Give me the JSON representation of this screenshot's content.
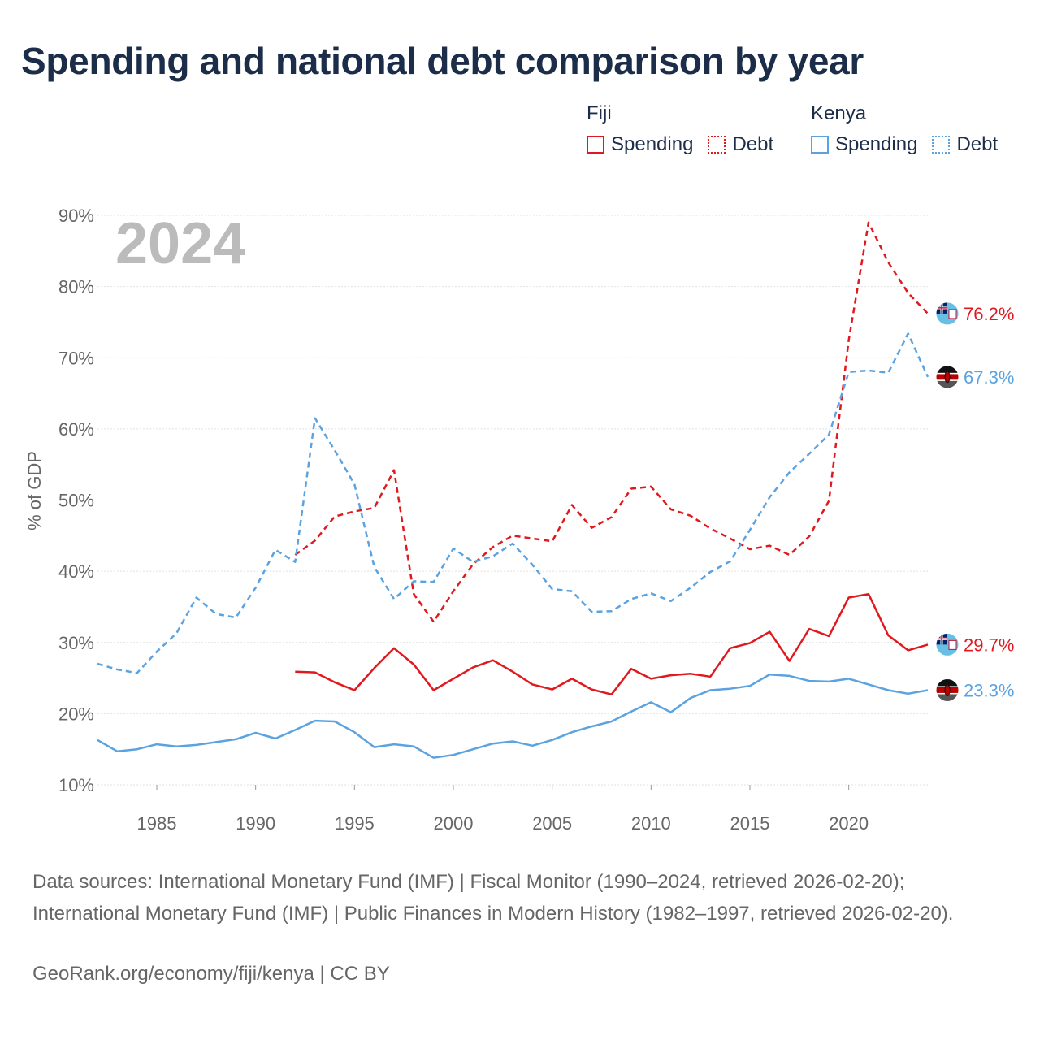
{
  "title": "Spending and national debt comparison by year",
  "legend": {
    "groups": [
      {
        "country": "Fiji",
        "spending_label": "Spending",
        "debt_label": "Debt",
        "color": "#e0191f"
      },
      {
        "country": "Kenya",
        "spending_label": "Spending",
        "debt_label": "Debt",
        "color": "#5ba3e0"
      }
    ]
  },
  "year_label": "2024",
  "footer": {
    "sources": "Data sources: International Monetary Fund (IMF) | Fiscal Monitor (1990–2024, retrieved 2026-02-20); International Monetary Fund (IMF) | Public Finances in Modern History (1982–1997, retrieved 2026-02-20).",
    "credit": "GeoRank.org/economy/fiji/kenya | CC BY"
  },
  "chart_data": {
    "type": "line",
    "title": "Spending and national debt comparison by year",
    "xlabel": "",
    "ylabel": "% of GDP",
    "xlim": [
      1982,
      2024
    ],
    "ylim": [
      10,
      90
    ],
    "x_ticks": [
      1985,
      1990,
      1995,
      2000,
      2005,
      2010,
      2015,
      2020
    ],
    "y_ticks": [
      10,
      20,
      30,
      40,
      50,
      60,
      70,
      80,
      90
    ],
    "grid": true,
    "series": [
      {
        "name": "Fiji Debt",
        "country": "Fiji",
        "measure": "Debt",
        "style": "dashed",
        "color": "#e0191f",
        "end_label": "76.2%",
        "points": [
          [
            1992,
            42.3
          ],
          [
            1993,
            44.3
          ],
          [
            1994,
            47.7
          ],
          [
            1995,
            48.4
          ],
          [
            1996,
            48.9
          ],
          [
            1997,
            54.2
          ],
          [
            1998,
            36.8
          ],
          [
            1999,
            32.9
          ],
          [
            2000,
            37.2
          ],
          [
            2001,
            41.0
          ],
          [
            2002,
            43.4
          ],
          [
            2003,
            45.0
          ],
          [
            2004,
            44.6
          ],
          [
            2005,
            44.2
          ],
          [
            2006,
            49.3
          ],
          [
            2007,
            46.1
          ],
          [
            2008,
            47.6
          ],
          [
            2009,
            51.6
          ],
          [
            2010,
            51.9
          ],
          [
            2011,
            48.7
          ],
          [
            2012,
            47.8
          ],
          [
            2013,
            46.0
          ],
          [
            2014,
            44.6
          ],
          [
            2015,
            43.1
          ],
          [
            2016,
            43.6
          ],
          [
            2017,
            42.3
          ],
          [
            2018,
            44.9
          ],
          [
            2019,
            49.9
          ],
          [
            2020,
            72.5
          ],
          [
            2021,
            89.0
          ],
          [
            2022,
            83.4
          ],
          [
            2023,
            79.1
          ],
          [
            2024,
            76.2
          ]
        ]
      },
      {
        "name": "Kenya Debt",
        "country": "Kenya",
        "measure": "Debt",
        "style": "dashed",
        "color": "#5ba3e0",
        "end_label": "67.3%",
        "points": [
          [
            1982,
            27.0
          ],
          [
            1983,
            26.2
          ],
          [
            1984,
            25.7
          ],
          [
            1985,
            28.7
          ],
          [
            1986,
            31.3
          ],
          [
            1987,
            36.3
          ],
          [
            1988,
            34.0
          ],
          [
            1989,
            33.5
          ],
          [
            1990,
            37.7
          ],
          [
            1991,
            43.0
          ],
          [
            1992,
            41.3
          ],
          [
            1993,
            61.5
          ],
          [
            1994,
            57.0
          ],
          [
            1995,
            52.2
          ],
          [
            1996,
            40.6
          ],
          [
            1997,
            36.1
          ],
          [
            1998,
            38.6
          ],
          [
            1999,
            38.5
          ],
          [
            2000,
            43.2
          ],
          [
            2001,
            41.3
          ],
          [
            2002,
            42.1
          ],
          [
            2003,
            43.9
          ],
          [
            2004,
            40.9
          ],
          [
            2005,
            37.5
          ],
          [
            2006,
            37.2
          ],
          [
            2007,
            34.3
          ],
          [
            2008,
            34.4
          ],
          [
            2009,
            36.1
          ],
          [
            2010,
            36.9
          ],
          [
            2011,
            35.8
          ],
          [
            2012,
            37.7
          ],
          [
            2013,
            39.9
          ],
          [
            2014,
            41.4
          ],
          [
            2015,
            45.8
          ],
          [
            2016,
            50.4
          ],
          [
            2017,
            53.9
          ],
          [
            2018,
            56.5
          ],
          [
            2019,
            59.2
          ],
          [
            2020,
            68.0
          ],
          [
            2021,
            68.2
          ],
          [
            2022,
            67.9
          ],
          [
            2023,
            73.4
          ],
          [
            2024,
            67.3
          ]
        ]
      },
      {
        "name": "Fiji Spending",
        "country": "Fiji",
        "measure": "Spending",
        "style": "solid",
        "color": "#e0191f",
        "end_label": "29.7%",
        "points": [
          [
            1992,
            25.9
          ],
          [
            1993,
            25.8
          ],
          [
            1994,
            24.4
          ],
          [
            1995,
            23.3
          ],
          [
            1996,
            26.4
          ],
          [
            1997,
            29.2
          ],
          [
            1998,
            26.9
          ],
          [
            1999,
            23.3
          ],
          [
            2000,
            24.9
          ],
          [
            2001,
            26.5
          ],
          [
            2002,
            27.5
          ],
          [
            2003,
            25.9
          ],
          [
            2004,
            24.1
          ],
          [
            2005,
            23.4
          ],
          [
            2006,
            24.9
          ],
          [
            2007,
            23.4
          ],
          [
            2008,
            22.7
          ],
          [
            2009,
            26.3
          ],
          [
            2010,
            24.9
          ],
          [
            2011,
            25.4
          ],
          [
            2012,
            25.6
          ],
          [
            2013,
            25.2
          ],
          [
            2014,
            29.2
          ],
          [
            2015,
            29.9
          ],
          [
            2016,
            31.5
          ],
          [
            2017,
            27.4
          ],
          [
            2018,
            31.9
          ],
          [
            2019,
            30.9
          ],
          [
            2020,
            36.3
          ],
          [
            2021,
            36.8
          ],
          [
            2022,
            31.0
          ],
          [
            2023,
            28.9
          ],
          [
            2024,
            29.7
          ]
        ]
      },
      {
        "name": "Kenya Spending",
        "country": "Kenya",
        "measure": "Spending",
        "style": "solid",
        "color": "#5ba3e0",
        "end_label": "23.3%",
        "points": [
          [
            1982,
            16.3
          ],
          [
            1983,
            14.7
          ],
          [
            1984,
            15.0
          ],
          [
            1985,
            15.7
          ],
          [
            1986,
            15.4
          ],
          [
            1987,
            15.6
          ],
          [
            1988,
            16.0
          ],
          [
            1989,
            16.4
          ],
          [
            1990,
            17.3
          ],
          [
            1991,
            16.5
          ],
          [
            1992,
            17.7
          ],
          [
            1993,
            19.0
          ],
          [
            1994,
            18.9
          ],
          [
            1995,
            17.4
          ],
          [
            1996,
            15.3
          ],
          [
            1997,
            15.7
          ],
          [
            1998,
            15.4
          ],
          [
            1999,
            13.8
          ],
          [
            2000,
            14.2
          ],
          [
            2001,
            15.0
          ],
          [
            2002,
            15.8
          ],
          [
            2003,
            16.1
          ],
          [
            2004,
            15.5
          ],
          [
            2005,
            16.3
          ],
          [
            2006,
            17.4
          ],
          [
            2007,
            18.2
          ],
          [
            2008,
            18.9
          ],
          [
            2009,
            20.3
          ],
          [
            2010,
            21.6
          ],
          [
            2011,
            20.2
          ],
          [
            2012,
            22.2
          ],
          [
            2013,
            23.3
          ],
          [
            2014,
            23.5
          ],
          [
            2015,
            23.9
          ],
          [
            2016,
            25.5
          ],
          [
            2017,
            25.3
          ],
          [
            2018,
            24.6
          ],
          [
            2019,
            24.5
          ],
          [
            2020,
            24.9
          ],
          [
            2021,
            24.1
          ],
          [
            2022,
            23.3
          ],
          [
            2023,
            22.8
          ],
          [
            2024,
            23.3
          ]
        ]
      }
    ]
  }
}
